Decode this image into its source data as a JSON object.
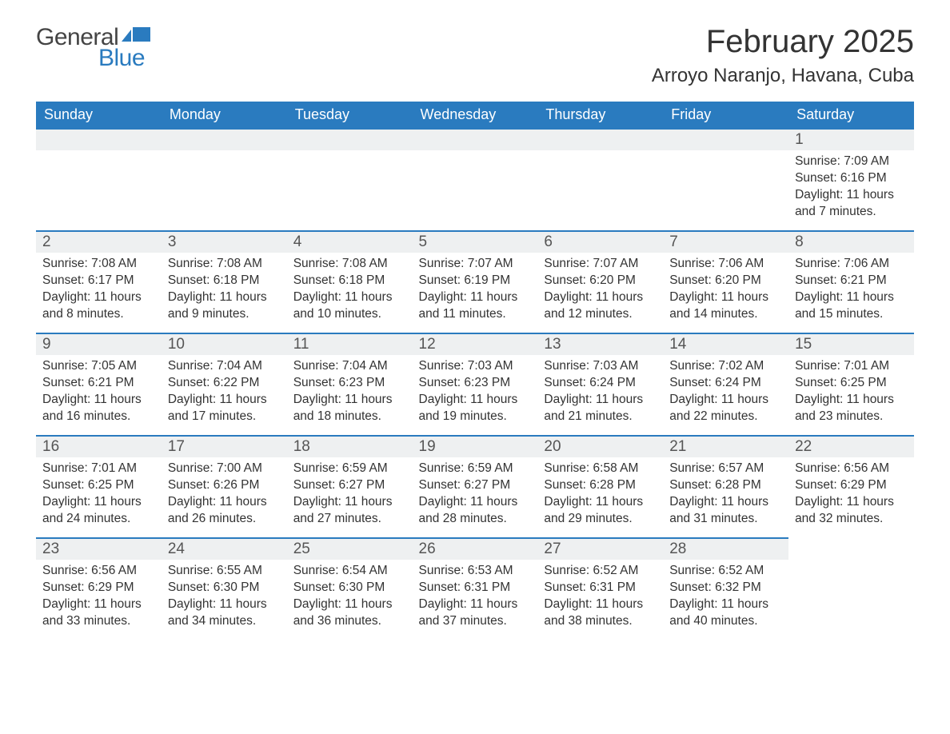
{
  "logo": {
    "text_general": "General",
    "text_blue": "Blue",
    "icon_color": "#2a7bbf"
  },
  "title": "February 2025",
  "location": "Arroyo Naranjo, Havana, Cuba",
  "colors": {
    "header_bg": "#2a7bbf",
    "header_text": "#ffffff",
    "daynum_bg": "#eef0f1",
    "daynum_border": "#2a7bbf",
    "body_bg": "#ffffff",
    "text": "#333333"
  },
  "weekday_labels": [
    "Sunday",
    "Monday",
    "Tuesday",
    "Wednesday",
    "Thursday",
    "Friday",
    "Saturday"
  ],
  "weeks": [
    [
      null,
      null,
      null,
      null,
      null,
      null,
      {
        "day": "1",
        "sunrise": "Sunrise: 7:09 AM",
        "sunset": "Sunset: 6:16 PM",
        "daylight": "Daylight: 11 hours and 7 minutes."
      }
    ],
    [
      {
        "day": "2",
        "sunrise": "Sunrise: 7:08 AM",
        "sunset": "Sunset: 6:17 PM",
        "daylight": "Daylight: 11 hours and 8 minutes."
      },
      {
        "day": "3",
        "sunrise": "Sunrise: 7:08 AM",
        "sunset": "Sunset: 6:18 PM",
        "daylight": "Daylight: 11 hours and 9 minutes."
      },
      {
        "day": "4",
        "sunrise": "Sunrise: 7:08 AM",
        "sunset": "Sunset: 6:18 PM",
        "daylight": "Daylight: 11 hours and 10 minutes."
      },
      {
        "day": "5",
        "sunrise": "Sunrise: 7:07 AM",
        "sunset": "Sunset: 6:19 PM",
        "daylight": "Daylight: 11 hours and 11 minutes."
      },
      {
        "day": "6",
        "sunrise": "Sunrise: 7:07 AM",
        "sunset": "Sunset: 6:20 PM",
        "daylight": "Daylight: 11 hours and 12 minutes."
      },
      {
        "day": "7",
        "sunrise": "Sunrise: 7:06 AM",
        "sunset": "Sunset: 6:20 PM",
        "daylight": "Daylight: 11 hours and 14 minutes."
      },
      {
        "day": "8",
        "sunrise": "Sunrise: 7:06 AM",
        "sunset": "Sunset: 6:21 PM",
        "daylight": "Daylight: 11 hours and 15 minutes."
      }
    ],
    [
      {
        "day": "9",
        "sunrise": "Sunrise: 7:05 AM",
        "sunset": "Sunset: 6:21 PM",
        "daylight": "Daylight: 11 hours and 16 minutes."
      },
      {
        "day": "10",
        "sunrise": "Sunrise: 7:04 AM",
        "sunset": "Sunset: 6:22 PM",
        "daylight": "Daylight: 11 hours and 17 minutes."
      },
      {
        "day": "11",
        "sunrise": "Sunrise: 7:04 AM",
        "sunset": "Sunset: 6:23 PM",
        "daylight": "Daylight: 11 hours and 18 minutes."
      },
      {
        "day": "12",
        "sunrise": "Sunrise: 7:03 AM",
        "sunset": "Sunset: 6:23 PM",
        "daylight": "Daylight: 11 hours and 19 minutes."
      },
      {
        "day": "13",
        "sunrise": "Sunrise: 7:03 AM",
        "sunset": "Sunset: 6:24 PM",
        "daylight": "Daylight: 11 hours and 21 minutes."
      },
      {
        "day": "14",
        "sunrise": "Sunrise: 7:02 AM",
        "sunset": "Sunset: 6:24 PM",
        "daylight": "Daylight: 11 hours and 22 minutes."
      },
      {
        "day": "15",
        "sunrise": "Sunrise: 7:01 AM",
        "sunset": "Sunset: 6:25 PM",
        "daylight": "Daylight: 11 hours and 23 minutes."
      }
    ],
    [
      {
        "day": "16",
        "sunrise": "Sunrise: 7:01 AM",
        "sunset": "Sunset: 6:25 PM",
        "daylight": "Daylight: 11 hours and 24 minutes."
      },
      {
        "day": "17",
        "sunrise": "Sunrise: 7:00 AM",
        "sunset": "Sunset: 6:26 PM",
        "daylight": "Daylight: 11 hours and 26 minutes."
      },
      {
        "day": "18",
        "sunrise": "Sunrise: 6:59 AM",
        "sunset": "Sunset: 6:27 PM",
        "daylight": "Daylight: 11 hours and 27 minutes."
      },
      {
        "day": "19",
        "sunrise": "Sunrise: 6:59 AM",
        "sunset": "Sunset: 6:27 PM",
        "daylight": "Daylight: 11 hours and 28 minutes."
      },
      {
        "day": "20",
        "sunrise": "Sunrise: 6:58 AM",
        "sunset": "Sunset: 6:28 PM",
        "daylight": "Daylight: 11 hours and 29 minutes."
      },
      {
        "day": "21",
        "sunrise": "Sunrise: 6:57 AM",
        "sunset": "Sunset: 6:28 PM",
        "daylight": "Daylight: 11 hours and 31 minutes."
      },
      {
        "day": "22",
        "sunrise": "Sunrise: 6:56 AM",
        "sunset": "Sunset: 6:29 PM",
        "daylight": "Daylight: 11 hours and 32 minutes."
      }
    ],
    [
      {
        "day": "23",
        "sunrise": "Sunrise: 6:56 AM",
        "sunset": "Sunset: 6:29 PM",
        "daylight": "Daylight: 11 hours and 33 minutes."
      },
      {
        "day": "24",
        "sunrise": "Sunrise: 6:55 AM",
        "sunset": "Sunset: 6:30 PM",
        "daylight": "Daylight: 11 hours and 34 minutes."
      },
      {
        "day": "25",
        "sunrise": "Sunrise: 6:54 AM",
        "sunset": "Sunset: 6:30 PM",
        "daylight": "Daylight: 11 hours and 36 minutes."
      },
      {
        "day": "26",
        "sunrise": "Sunrise: 6:53 AM",
        "sunset": "Sunset: 6:31 PM",
        "daylight": "Daylight: 11 hours and 37 minutes."
      },
      {
        "day": "27",
        "sunrise": "Sunrise: 6:52 AM",
        "sunset": "Sunset: 6:31 PM",
        "daylight": "Daylight: 11 hours and 38 minutes."
      },
      {
        "day": "28",
        "sunrise": "Sunrise: 6:52 AM",
        "sunset": "Sunset: 6:32 PM",
        "daylight": "Daylight: 11 hours and 40 minutes."
      },
      null
    ]
  ]
}
